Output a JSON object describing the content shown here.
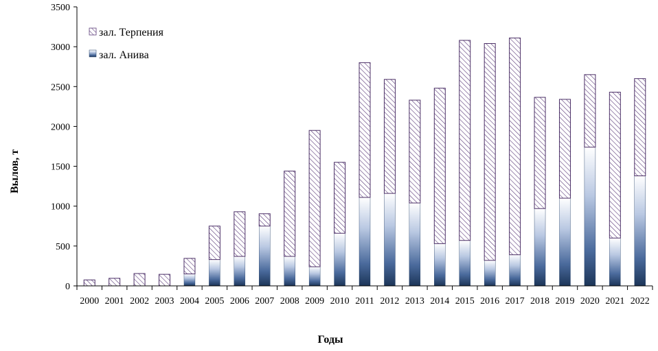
{
  "chart_data": {
    "type": "bar",
    "stacked": true,
    "title": "",
    "xlabel": "Годы",
    "ylabel": "Вылов, т",
    "ylim": [
      0,
      3500
    ],
    "yticks": [
      0,
      500,
      1000,
      1500,
      2000,
      2500,
      3000,
      3500
    ],
    "grid": false,
    "legend_position": "top-left",
    "categories": [
      "2000",
      "2001",
      "2002",
      "2003",
      "2004",
      "2005",
      "2006",
      "2007",
      "2008",
      "2009",
      "2010",
      "2011",
      "2012",
      "2013",
      "2014",
      "2015",
      "2016",
      "2017",
      "2018",
      "2019",
      "2020",
      "2021",
      "2022"
    ],
    "series": [
      {
        "name": "зал. Анива",
        "color": "#1f3b63",
        "values": [
          0,
          0,
          0,
          0,
          150,
          330,
          370,
          750,
          370,
          240,
          660,
          1110,
          1160,
          1040,
          530,
          570,
          320,
          390,
          970,
          1100,
          1740,
          600,
          1380
        ]
      },
      {
        "name": "зал. Терпения",
        "color": "#5a3a78",
        "values": [
          75,
          95,
          155,
          145,
          195,
          420,
          560,
          155,
          1070,
          1710,
          890,
          1690,
          1430,
          1290,
          1950,
          2510,
          2720,
          2720,
          1395,
          1240,
          910,
          1830,
          1220
        ]
      }
    ]
  }
}
